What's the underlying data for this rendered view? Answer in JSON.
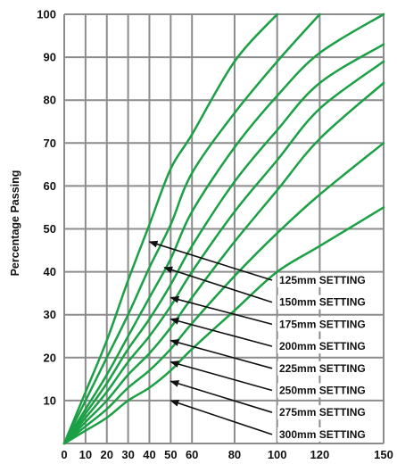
{
  "chart_data": {
    "type": "line",
    "title": "",
    "xlabel": "",
    "ylabel": "Percentage Passing",
    "xlim": [
      0,
      150
    ],
    "ylim": [
      0,
      100
    ],
    "grid": true,
    "line_color": "#1ba045",
    "grid_color": "#8c8c8c",
    "x_ticks": [
      0,
      10,
      20,
      30,
      40,
      50,
      60,
      80,
      100,
      120,
      150
    ],
    "y_ticks": [
      10,
      20,
      30,
      40,
      50,
      60,
      70,
      80,
      90,
      100
    ],
    "x_tick_labels": [
      "0",
      "10",
      "20",
      "30",
      "40",
      "50",
      "60",
      "80",
      "100",
      "120",
      "150"
    ],
    "y_tick_labels": [
      "10",
      "20",
      "30",
      "40",
      "50",
      "60",
      "70",
      "80",
      "90",
      "100"
    ],
    "series": [
      {
        "name": "125mm SETTING",
        "x": [
          0,
          10,
          20,
          30,
          40,
          50,
          60,
          80,
          100
        ],
        "y": [
          0,
          12,
          24,
          38,
          51,
          64,
          72,
          89,
          100
        ]
      },
      {
        "name": "150mm SETTING",
        "x": [
          0,
          10,
          20,
          30,
          40,
          50,
          60,
          80,
          100,
          120
        ],
        "y": [
          0,
          10,
          20,
          30,
          41,
          51,
          63,
          77,
          89,
          100
        ]
      },
      {
        "name": "175mm SETTING",
        "x": [
          0,
          10,
          20,
          30,
          40,
          50,
          60,
          80,
          100,
          120,
          150
        ],
        "y": [
          0,
          8,
          16,
          25,
          34,
          43,
          54,
          69,
          81,
          91,
          100
        ]
      },
      {
        "name": "200mm SETTING",
        "x": [
          0,
          10,
          20,
          30,
          40,
          50,
          60,
          80,
          100,
          120,
          150
        ],
        "y": [
          0,
          7,
          14,
          22,
          29,
          37,
          46,
          61,
          73,
          84,
          93
        ]
      },
      {
        "name": "225mm SETTING",
        "x": [
          0,
          10,
          20,
          30,
          40,
          50,
          60,
          80,
          100,
          120,
          150
        ],
        "y": [
          0,
          6,
          12,
          19,
          25,
          32,
          40,
          54,
          66,
          78,
          89
        ]
      },
      {
        "name": "250mm SETTING",
        "x": [
          0,
          10,
          20,
          30,
          40,
          50,
          60,
          80,
          100,
          120,
          150
        ],
        "y": [
          0,
          5,
          10,
          16,
          21,
          27,
          34,
          47,
          59,
          71,
          84
        ]
      },
      {
        "name": "275mm SETTING",
        "x": [
          0,
          10,
          20,
          30,
          40,
          50,
          60,
          80,
          100,
          120,
          150
        ],
        "y": [
          0,
          4,
          8,
          13,
          17,
          22,
          28,
          39,
          49,
          58,
          70
        ]
      },
      {
        "name": "300mm SETTING",
        "x": [
          0,
          10,
          20,
          30,
          40,
          50,
          60,
          80,
          100,
          120,
          150
        ],
        "y": [
          0,
          3,
          6,
          10,
          13,
          17,
          22,
          31,
          40,
          46,
          55
        ]
      }
    ],
    "annotations": [
      {
        "text": "125mm SETTING",
        "point": [
          40,
          47
        ]
      },
      {
        "text": "150mm SETTING",
        "point": [
          47,
          41
        ]
      },
      {
        "text": "175mm SETTING",
        "point": [
          50,
          34
        ]
      },
      {
        "text": "200mm SETTING",
        "point": [
          50,
          29
        ]
      },
      {
        "text": "225mm SETTING",
        "point": [
          50,
          24
        ]
      },
      {
        "text": "250mm SETTING",
        "point": [
          50,
          19
        ]
      },
      {
        "text": "275mm SETTING",
        "point": [
          50,
          14.5
        ]
      },
      {
        "text": "300mm SETTING",
        "point": [
          50,
          10
        ]
      }
    ]
  }
}
